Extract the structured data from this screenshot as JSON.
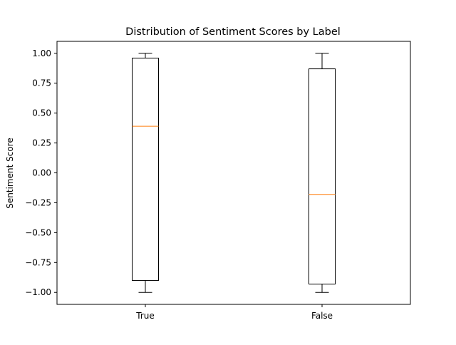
{
  "chart_data": {
    "type": "box",
    "title": "Distribution of Sentiment Scores by Label",
    "xlabel": "",
    "ylabel": "Sentiment Score",
    "categories": [
      "True",
      "False"
    ],
    "boxes": [
      {
        "category": "True",
        "whisker_low": -1.0,
        "q1": -0.9,
        "median": 0.39,
        "q3": 0.96,
        "whisker_high": 1.0
      },
      {
        "category": "False",
        "whisker_low": -1.0,
        "q1": -0.93,
        "median": -0.18,
        "q3": 0.87,
        "whisker_high": 1.0
      }
    ],
    "ylim": [
      -1.1,
      1.1
    ],
    "yticks": [
      1.0,
      0.75,
      0.5,
      0.25,
      0.0,
      -0.25,
      -0.5,
      -0.75,
      -1.0
    ],
    "ytick_labels": [
      "1.00",
      "0.75",
      "0.50",
      "0.25",
      "0.00",
      "−0.25",
      "−0.50",
      "−0.75",
      "−1.00"
    ],
    "grid": false,
    "colors": {
      "box": "#000000",
      "median": "#ff7f0e",
      "axes": "#000000",
      "background": "#ffffff"
    }
  }
}
